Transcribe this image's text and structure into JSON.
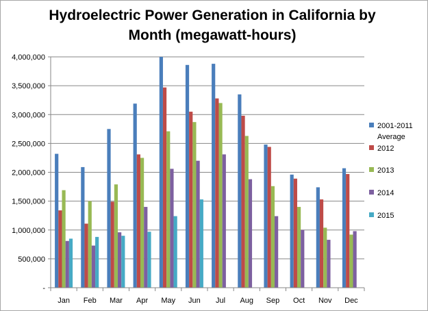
{
  "chart_data": {
    "type": "bar",
    "title_line1": "Hydroelectric Power Generation in California by",
    "title_line2": "Month (megawatt-hours)",
    "xlabel": "",
    "ylabel": "",
    "ylim": [
      0,
      4000000
    ],
    "y_ticks": [
      {
        "value": 0,
        "label": "-"
      },
      {
        "value": 500000,
        "label": "500,000"
      },
      {
        "value": 1000000,
        "label": "1,000,000"
      },
      {
        "value": 1500000,
        "label": "1,500,000"
      },
      {
        "value": 2000000,
        "label": "2,000,000"
      },
      {
        "value": 2500000,
        "label": "2,500,000"
      },
      {
        "value": 3000000,
        "label": "3,000,000"
      },
      {
        "value": 3500000,
        "label": "3,500,000"
      },
      {
        "value": 4000000,
        "label": "4,000,000"
      }
    ],
    "grid": true,
    "legend_position": "right",
    "categories": [
      "Jan",
      "Feb",
      "Mar",
      "Apr",
      "May",
      "Jun",
      "Jul",
      "Aug",
      "Sep",
      "Oct",
      "Nov",
      "Dec"
    ],
    "series": [
      {
        "name": "2001-2011 Average",
        "legend_lines": [
          "2001-2011",
          "Average"
        ],
        "color": "#4a7ebb",
        "values": [
          2320000,
          2090000,
          2750000,
          3190000,
          4000000,
          3860000,
          3880000,
          3350000,
          2480000,
          1960000,
          1740000,
          2070000
        ]
      },
      {
        "name": "2012",
        "legend_lines": [
          "2012"
        ],
        "color": "#be4b48",
        "values": [
          1340000,
          1110000,
          1490000,
          2310000,
          3470000,
          3050000,
          3280000,
          2980000,
          2440000,
          1890000,
          1530000,
          1970000
        ]
      },
      {
        "name": "2013",
        "legend_lines": [
          "2013"
        ],
        "color": "#98b954",
        "values": [
          1690000,
          1500000,
          1790000,
          2250000,
          2710000,
          2870000,
          3200000,
          2630000,
          1760000,
          1400000,
          1040000,
          920000
        ]
      },
      {
        "name": "2014",
        "legend_lines": [
          "2014"
        ],
        "color": "#7d60a0",
        "values": [
          810000,
          730000,
          960000,
          1400000,
          2060000,
          2200000,
          2310000,
          1880000,
          1240000,
          1000000,
          830000,
          980000
        ]
      },
      {
        "name": "2015",
        "legend_lines": [
          "2015"
        ],
        "color": "#46aac5",
        "values": [
          850000,
          880000,
          900000,
          970000,
          1240000,
          1530000,
          null,
          null,
          null,
          null,
          null,
          null
        ]
      }
    ]
  }
}
